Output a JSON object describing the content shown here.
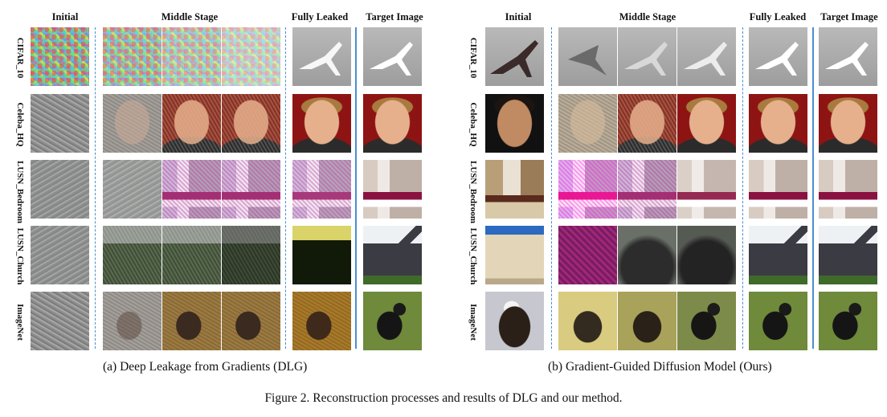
{
  "column_headers": {
    "initial": "Initial",
    "middle": "Middle Stage",
    "leaked": "Fully Leaked",
    "target": "Target Image"
  },
  "row_labels": [
    "CIFAR_10",
    "Celeba_HQ",
    "LUSN_Bedroom",
    "LUSN_Church",
    "ImageNet"
  ],
  "subcaptions": {
    "a": "(a) Deep Leakage from Gradients (DLG)",
    "b": "(b) Gradient-Guided Diffusion Model (Ours)"
  },
  "figure_caption": "Figure 2. Reconstruction processes and results of DLG and our method.",
  "colors": {
    "divider": "#4a8fd0"
  }
}
